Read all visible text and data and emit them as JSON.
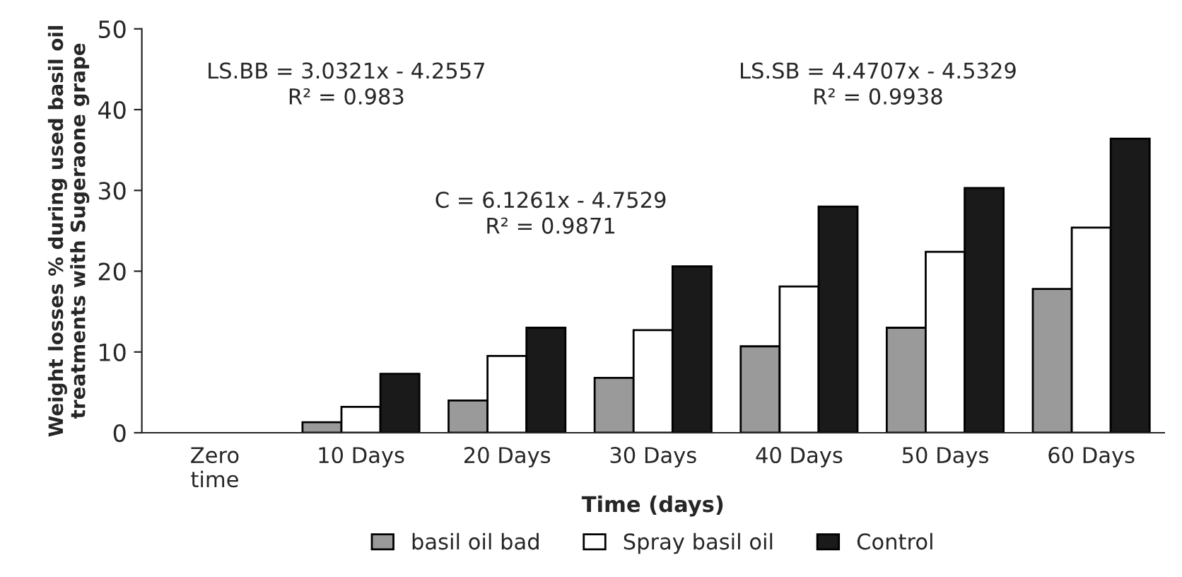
{
  "chart_data": {
    "type": "bar",
    "xlabel": "Time (days)",
    "ylabel": "Weight losses % during used basil oil treatments with Sugeraone grape",
    "categories": [
      "Zero time",
      "10 Days",
      "20 Days",
      "30 Days",
      "40 Days",
      "50 Days",
      "60 Days"
    ],
    "series": [
      {
        "name": "basil oil bad",
        "color": "#9a9a9a",
        "values": [
          0,
          1.3,
          4.0,
          6.8,
          10.7,
          13.0,
          17.8
        ]
      },
      {
        "name": "Spray basil oil",
        "color": "#ffffff",
        "values": [
          0,
          3.2,
          9.5,
          12.7,
          18.1,
          22.4,
          25.4
        ]
      },
      {
        "name": "Control",
        "color": "#1a1a1a",
        "values": [
          0,
          7.3,
          13.0,
          20.6,
          28.0,
          30.3,
          36.4
        ]
      }
    ],
    "ylim": [
      0,
      50
    ],
    "yticks": [
      0,
      10,
      20,
      30,
      40,
      50
    ],
    "grid": false,
    "legend": "bottom",
    "annotations": [
      "LS.BB = 3.0321x - 4.2557\nR² = 0.983",
      "C = 6.1261x - 4.7529\nR² = 0.9871",
      "LS.SB = 4.4707x - 4.5329\nR² = 0.9938"
    ]
  }
}
